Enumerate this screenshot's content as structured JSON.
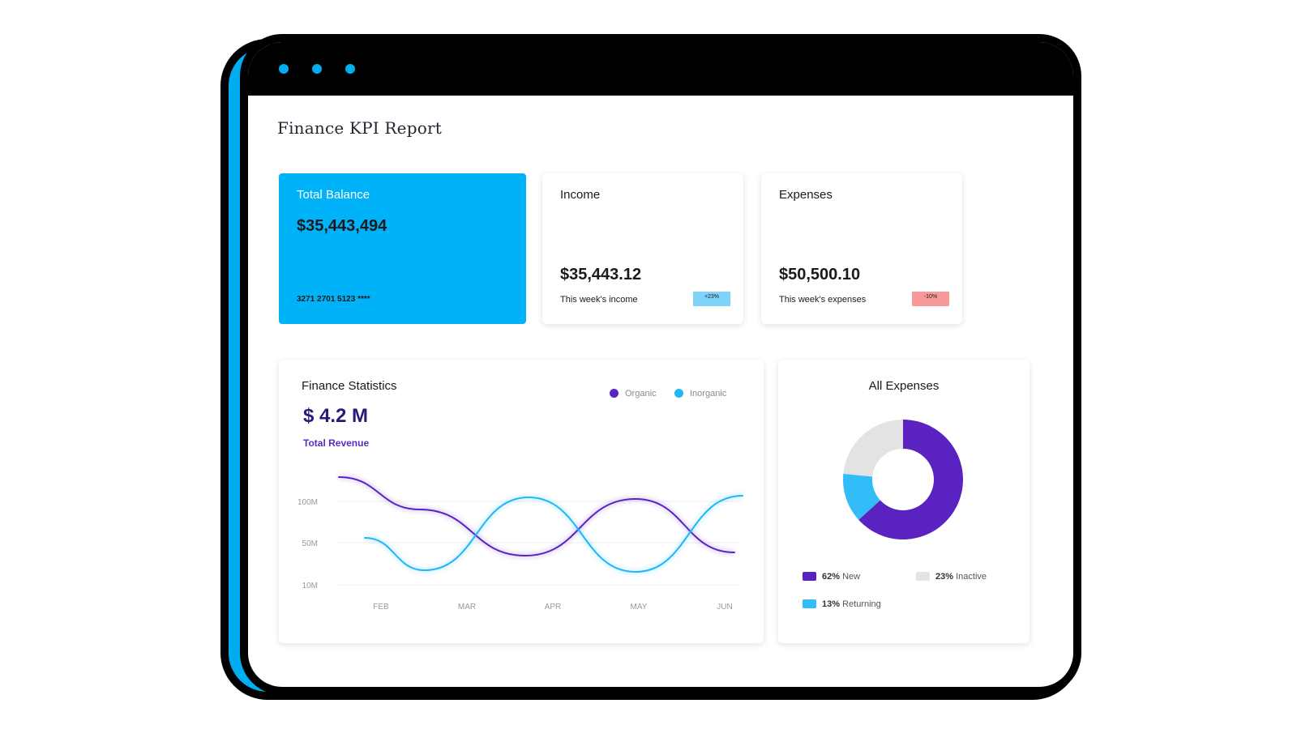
{
  "window": {
    "title": "Finance KPI Report"
  },
  "colors": {
    "accent": "#00b2f7",
    "organic": "#5b22c2",
    "inorganic": "#1fb7f5",
    "new": "#5b22c2",
    "inactive": "#e3e3e3",
    "returning": "#33bdf8",
    "badge_up": "#7fd3fa",
    "badge_down": "#f99a9a"
  },
  "total_balance": {
    "label": "Total Balance",
    "amount": "$35,443,494",
    "card_number": "3271 2701 5123 ****"
  },
  "income": {
    "label": "Income",
    "amount": "$35,443.12",
    "subtitle": "This week's income",
    "badge": "+23%"
  },
  "expenses": {
    "label": "Expenses",
    "amount": "$50,500.10",
    "subtitle": "This week's expenses",
    "badge": "-10%"
  },
  "finance_statistics": {
    "title": "Finance Statistics",
    "revenue": "$ 4.2 M",
    "revenue_label": "Total Revenue",
    "legend": [
      "Organic",
      "Inorganic"
    ]
  },
  "chart_data": {
    "type": "line",
    "x": [
      "FEB",
      "MAR",
      "APR",
      "MAY",
      "JUN"
    ],
    "y_ticks": [
      "100M",
      "50M",
      "10M"
    ],
    "series": [
      {
        "name": "Organic",
        "values": [
          135,
          95,
          38,
          108,
          42
        ]
      },
      {
        "name": "Inorganic",
        "values": [
          60,
          20,
          110,
          18,
          112
        ]
      }
    ]
  },
  "all_expenses": {
    "title": "All Expenses",
    "donut": [
      {
        "name": "New",
        "percent": 62
      },
      {
        "name": "Returning",
        "percent": 13
      },
      {
        "name": "Inactive",
        "percent": 23
      }
    ],
    "legend": {
      "new_pct": "62%",
      "new_label": "New",
      "inactive_pct": "23%",
      "inactive_label": "Inactive",
      "returning_pct": "13%",
      "returning_label": "Returning"
    }
  }
}
